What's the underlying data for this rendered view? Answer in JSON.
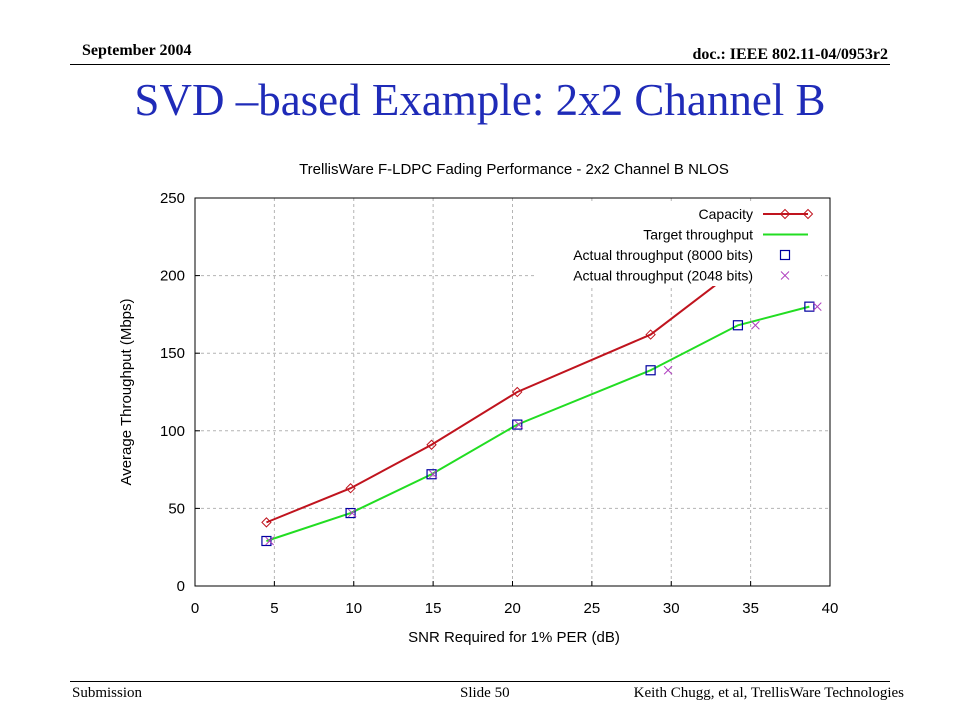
{
  "header": {
    "date": "September 2004",
    "doc_id": "doc.: IEEE 802.11-04/0953r2"
  },
  "slide_title": "SVD –based Example: 2x2 Channel B",
  "footer": {
    "left": "Submission",
    "center": "Slide 50",
    "right": "Keith Chugg, et al, TrellisWare  Technologies"
  },
  "colors": {
    "capacity": "#c0141e",
    "target": "#22dd22",
    "actual_8000": "#0000a0",
    "actual_2048": "#b040c0",
    "title_blue": "#1f2bb8"
  },
  "chart_data": {
    "type": "line",
    "title": "TrellisWare F-LDPC Fading Performance - 2x2 Channel B NLOS",
    "xlabel": "SNR Required for 1% PER (dB)",
    "ylabel": "Average Throughput (Mbps)",
    "xlim": [
      0,
      40
    ],
    "ylim": [
      0,
      250
    ],
    "xticks": [
      0,
      5,
      10,
      15,
      20,
      25,
      30,
      35,
      40
    ],
    "yticks": [
      0,
      50,
      100,
      150,
      200,
      250
    ],
    "grid": true,
    "legend_position": "top-right",
    "series": [
      {
        "name": "Capacity",
        "style": "line+diamond",
        "color": "#c0141e",
        "x": [
          4.5,
          9.8,
          14.9,
          20.3,
          28.7,
          38.7
        ],
        "y": [
          41,
          63,
          91,
          125,
          162,
          240
        ]
      },
      {
        "name": "Target throughput",
        "style": "line",
        "color": "#22dd22",
        "x": [
          4.5,
          9.8,
          14.9,
          20.3,
          28.7,
          34.2,
          38.7
        ],
        "y": [
          29,
          47,
          72,
          104,
          139,
          168,
          180
        ]
      },
      {
        "name": "Actual throughput (8000 bits)",
        "style": "square",
        "color": "#0000a0",
        "x": [
          4.5,
          9.8,
          14.9,
          20.3,
          28.7,
          34.2,
          38.7
        ],
        "y": [
          29,
          47,
          72,
          104,
          139,
          168,
          180
        ]
      },
      {
        "name": "Actual throughput (2048 bits)",
        "style": "cross",
        "color": "#b040c0",
        "x": [
          4.7,
          9.9,
          15.0,
          20.4,
          29.8,
          35.3,
          39.2
        ],
        "y": [
          29,
          47,
          72,
          104,
          139,
          168,
          180
        ]
      }
    ]
  }
}
